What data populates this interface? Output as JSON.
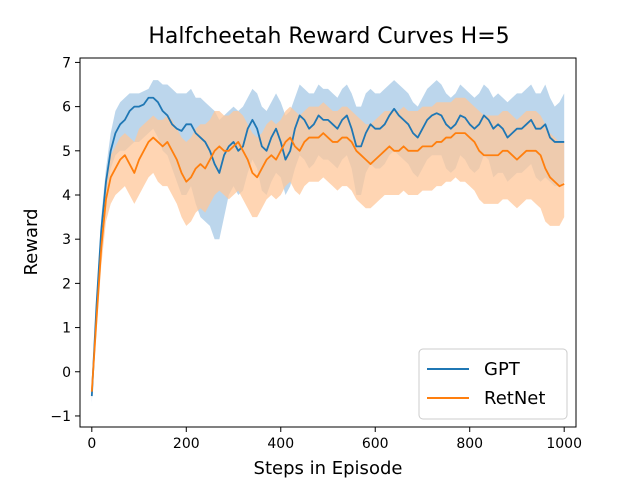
{
  "chart_data": {
    "type": "line",
    "title": "Halfcheetah Reward Curves H=5",
    "xlabel": "Steps in Episode",
    "ylabel": "Reward",
    "xlim": [
      -25,
      1025
    ],
    "ylim": [
      -1.25,
      7.1
    ],
    "xticks": [
      0,
      200,
      400,
      600,
      800,
      1000
    ],
    "yticks": [
      -1,
      0,
      1,
      2,
      3,
      4,
      5,
      6,
      7
    ],
    "grid": false,
    "legend": {
      "position": "bottom-right"
    },
    "x": [
      0,
      10,
      20,
      30,
      40,
      50,
      60,
      70,
      80,
      90,
      100,
      110,
      120,
      130,
      140,
      150,
      160,
      170,
      180,
      190,
      200,
      210,
      220,
      230,
      240,
      250,
      260,
      270,
      280,
      290,
      300,
      310,
      320,
      330,
      340,
      350,
      360,
      370,
      380,
      390,
      400,
      410,
      420,
      430,
      440,
      450,
      460,
      470,
      480,
      490,
      500,
      510,
      520,
      530,
      540,
      550,
      560,
      570,
      580,
      590,
      600,
      610,
      620,
      630,
      640,
      650,
      660,
      670,
      680,
      690,
      700,
      710,
      720,
      730,
      740,
      750,
      760,
      770,
      780,
      790,
      800,
      810,
      820,
      830,
      840,
      850,
      860,
      870,
      880,
      890,
      900,
      910,
      920,
      930,
      940,
      950,
      960,
      970,
      980,
      990,
      1000
    ],
    "series": [
      {
        "name": "GPT",
        "color": "#1f77b4",
        "band_color": "#a6c8e5",
        "values": [
          -0.55,
          1.5,
          3.2,
          4.3,
          5.0,
          5.4,
          5.6,
          5.7,
          5.9,
          6.0,
          6.0,
          6.05,
          6.2,
          6.2,
          6.1,
          5.9,
          5.8,
          5.6,
          5.5,
          5.45,
          5.6,
          5.6,
          5.4,
          5.3,
          5.2,
          5.0,
          4.7,
          4.5,
          4.9,
          5.1,
          5.2,
          5.0,
          5.1,
          5.5,
          5.7,
          5.5,
          5.1,
          5.0,
          5.3,
          5.5,
          5.2,
          4.8,
          5.0,
          5.5,
          5.8,
          5.7,
          5.5,
          5.6,
          5.8,
          5.7,
          5.7,
          5.6,
          5.5,
          5.7,
          5.8,
          5.5,
          5.1,
          5.1,
          5.4,
          5.6,
          5.5,
          5.5,
          5.6,
          5.8,
          5.95,
          5.8,
          5.7,
          5.6,
          5.4,
          5.3,
          5.5,
          5.7,
          5.8,
          5.85,
          5.8,
          5.6,
          5.5,
          5.6,
          5.8,
          5.75,
          5.6,
          5.5,
          5.6,
          5.8,
          5.7,
          5.5,
          5.6,
          5.5,
          5.3,
          5.4,
          5.5,
          5.5,
          5.6,
          5.7,
          5.5,
          5.5,
          5.6,
          5.3,
          5.2,
          5.2,
          5.2
        ],
        "lower": [
          -0.7,
          1.3,
          2.9,
          4.0,
          4.6,
          4.9,
          5.0,
          5.0,
          5.1,
          5.2,
          5.2,
          5.3,
          5.4,
          5.5,
          5.3,
          5.0,
          4.9,
          4.6,
          4.3,
          4.0,
          4.0,
          4.2,
          3.8,
          3.5,
          3.4,
          3.3,
          3.0,
          3.0,
          3.5,
          4.0,
          4.2,
          4.0,
          4.1,
          4.5,
          4.8,
          4.6,
          4.1,
          4.0,
          4.3,
          4.5,
          4.4,
          4.0,
          4.2,
          4.6,
          4.9,
          4.8,
          4.6,
          4.7,
          4.9,
          4.8,
          4.8,
          4.7,
          4.6,
          4.8,
          4.9,
          4.6,
          4.0,
          4.0,
          4.5,
          4.7,
          4.6,
          4.6,
          4.7,
          4.9,
          5.0,
          4.9,
          4.8,
          4.7,
          4.5,
          4.4,
          4.6,
          4.8,
          4.9,
          4.9,
          4.9,
          4.6,
          4.5,
          4.6,
          4.9,
          4.8,
          4.6,
          4.5,
          4.6,
          4.9,
          4.8,
          4.4,
          4.5,
          4.5,
          4.3,
          4.4,
          4.5,
          4.5,
          4.6,
          4.7,
          4.4,
          4.3,
          4.4,
          4.3,
          4.2,
          4.2,
          4.3
        ],
        "upper": [
          -0.4,
          1.7,
          3.5,
          4.6,
          5.4,
          5.9,
          6.1,
          6.2,
          6.3,
          6.3,
          6.3,
          6.35,
          6.4,
          6.6,
          6.6,
          6.5,
          6.5,
          6.4,
          6.3,
          6.3,
          6.3,
          6.4,
          6.2,
          6.2,
          6.1,
          6.0,
          5.9,
          5.7,
          5.8,
          5.9,
          6.0,
          5.9,
          6.0,
          6.2,
          6.4,
          6.3,
          6.0,
          5.9,
          6.1,
          6.3,
          6.1,
          5.8,
          5.9,
          6.2,
          6.5,
          6.4,
          6.3,
          6.3,
          6.5,
          6.4,
          6.4,
          6.3,
          6.2,
          6.4,
          6.5,
          6.3,
          6.0,
          6.0,
          6.3,
          6.4,
          6.3,
          6.3,
          6.4,
          6.5,
          6.6,
          6.5,
          6.4,
          6.3,
          6.1,
          6.0,
          6.2,
          6.4,
          6.5,
          6.6,
          6.5,
          6.3,
          6.2,
          6.3,
          6.5,
          6.4,
          6.3,
          6.2,
          6.3,
          6.5,
          6.4,
          6.2,
          6.3,
          6.2,
          6.1,
          6.2,
          6.3,
          6.3,
          6.4,
          6.5,
          6.3,
          6.3,
          6.5,
          6.2,
          6.0,
          6.1,
          6.3
        ]
      },
      {
        "name": "RetNet",
        "color": "#ff7f0e",
        "band_color": "#ffc799",
        "values": [
          -0.45,
          1.2,
          2.8,
          3.9,
          4.4,
          4.6,
          4.8,
          4.9,
          4.7,
          4.5,
          4.8,
          5.0,
          5.2,
          5.3,
          5.2,
          5.1,
          5.2,
          5.0,
          4.8,
          4.5,
          4.3,
          4.4,
          4.6,
          4.7,
          4.6,
          4.8,
          5.0,
          5.1,
          5.0,
          5.0,
          5.1,
          5.2,
          5.0,
          4.8,
          4.5,
          4.4,
          4.6,
          4.8,
          4.9,
          4.8,
          5.0,
          5.2,
          5.3,
          5.1,
          5.0,
          5.2,
          5.3,
          5.3,
          5.3,
          5.4,
          5.3,
          5.2,
          5.2,
          5.3,
          5.3,
          5.2,
          5.0,
          4.9,
          4.8,
          4.7,
          4.8,
          4.9,
          5.0,
          5.1,
          5.0,
          5.0,
          5.1,
          5.0,
          5.0,
          5.0,
          5.1,
          5.1,
          5.1,
          5.2,
          5.2,
          5.3,
          5.3,
          5.4,
          5.4,
          5.4,
          5.3,
          5.2,
          5.0,
          4.9,
          4.9,
          4.9,
          4.9,
          5.0,
          5.0,
          4.9,
          4.8,
          4.9,
          5.0,
          5.0,
          5.0,
          4.9,
          4.6,
          4.4,
          4.3,
          4.2,
          4.25
        ],
        "lower": [
          -0.6,
          0.9,
          2.4,
          3.4,
          3.8,
          4.0,
          4.1,
          4.2,
          4.0,
          3.8,
          4.0,
          4.2,
          4.4,
          4.5,
          4.3,
          4.2,
          4.2,
          4.0,
          3.8,
          3.5,
          3.3,
          3.4,
          3.6,
          3.7,
          3.6,
          3.8,
          4.0,
          4.1,
          4.0,
          3.9,
          4.0,
          4.1,
          3.9,
          3.7,
          3.5,
          3.5,
          3.7,
          3.9,
          4.0,
          3.9,
          4.0,
          4.2,
          4.3,
          4.1,
          4.0,
          4.2,
          4.3,
          4.3,
          4.3,
          4.4,
          4.3,
          4.2,
          4.1,
          4.2,
          4.2,
          4.1,
          3.9,
          3.8,
          3.7,
          3.7,
          3.8,
          3.9,
          4.0,
          4.0,
          4.0,
          4.0,
          4.1,
          4.0,
          4.0,
          4.0,
          4.1,
          4.1,
          4.1,
          4.2,
          4.2,
          4.3,
          4.3,
          4.4,
          4.3,
          4.3,
          4.2,
          4.1,
          3.9,
          3.8,
          3.8,
          3.8,
          3.8,
          3.9,
          3.9,
          3.8,
          3.7,
          3.8,
          3.9,
          3.9,
          3.8,
          3.7,
          3.4,
          3.3,
          3.3,
          3.3,
          3.5
        ],
        "upper": [
          -0.3,
          1.5,
          3.2,
          4.3,
          4.9,
          5.1,
          5.3,
          5.4,
          5.3,
          5.2,
          5.5,
          5.6,
          5.7,
          5.8,
          5.7,
          5.7,
          5.8,
          5.7,
          5.5,
          5.3,
          5.2,
          5.3,
          5.5,
          5.6,
          5.6,
          5.7,
          5.9,
          5.9,
          5.8,
          5.8,
          5.9,
          5.9,
          5.8,
          5.6,
          5.4,
          5.3,
          5.4,
          5.6,
          5.7,
          5.6,
          5.7,
          5.9,
          6.0,
          5.9,
          5.8,
          5.9,
          6.0,
          6.0,
          6.0,
          6.1,
          6.0,
          5.9,
          5.9,
          6.0,
          6.0,
          5.9,
          5.8,
          5.7,
          5.6,
          5.6,
          5.7,
          5.8,
          5.9,
          5.9,
          5.9,
          5.9,
          6.0,
          5.9,
          5.9,
          5.9,
          6.0,
          6.0,
          6.0,
          6.1,
          6.1,
          6.1,
          6.1,
          6.2,
          6.2,
          6.2,
          6.1,
          6.0,
          5.9,
          5.8,
          5.8,
          5.8,
          5.8,
          5.9,
          5.9,
          5.8,
          5.7,
          5.8,
          5.9,
          5.9,
          5.9,
          5.8,
          5.6,
          5.4,
          5.3,
          5.2,
          5.2
        ]
      }
    ]
  }
}
